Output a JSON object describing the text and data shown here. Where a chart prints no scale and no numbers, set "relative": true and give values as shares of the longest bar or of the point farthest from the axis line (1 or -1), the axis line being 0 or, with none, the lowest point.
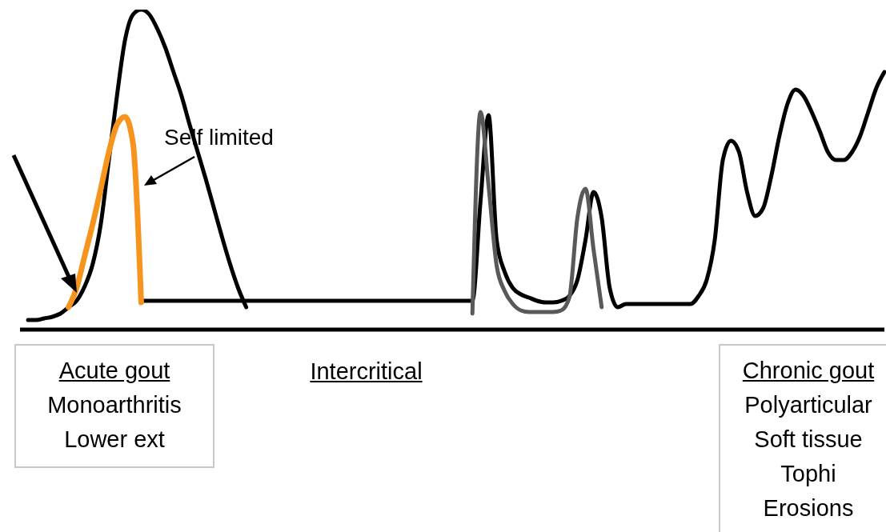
{
  "chart_data": {
    "type": "line",
    "relative": true,
    "categories": [
      null,
      null,
      null,
      null,
      null,
      null,
      null,
      null,
      null,
      null,
      null,
      null,
      null,
      null,
      null,
      null,
      null,
      null,
      null,
      null,
      null,
      null,
      null,
      null,
      null,
      null,
      null,
      null,
      null,
      null,
      null,
      null,
      null,
      null,
      null,
      null,
      null,
      null,
      null,
      null,
      null,
      null,
      null,
      null,
      null,
      null,
      null,
      null,
      null,
      null,
      null,
      null,
      null,
      null,
      null,
      null,
      null,
      null,
      null,
      null,
      null,
      null,
      null,
      null,
      null,
      null,
      null,
      null,
      null,
      null,
      null,
      null,
      null,
      null,
      null,
      null,
      null,
      null,
      null,
      null,
      null,
      null,
      null,
      null,
      null,
      null,
      null,
      null,
      null,
      null,
      null,
      null,
      null,
      null,
      null,
      null,
      null,
      null,
      null,
      null,
      null,
      null,
      null,
      null,
      null,
      null,
      null,
      null
    ],
    "series": [
      {
        "color": "#000000",
        "values": [
          null,
          0.03,
          0.03,
          0.035,
          0.04,
          0.05,
          0.07,
          0.09,
          0.135,
          0.205,
          0.33,
          0.53,
          0.73,
          0.905,
          0.985,
          1,
          0.985,
          0.94,
          0.88,
          0.805,
          0.73,
          0.64,
          0.555,
          0.47,
          0.38,
          0.29,
          0.205,
          0.13,
          0.07,
          null,
          null,
          null,
          null,
          null,
          null,
          null,
          null,
          null,
          null,
          null,
          null,
          null,
          null,
          null,
          null,
          null,
          null,
          null,
          null,
          null,
          null,
          null,
          null,
          null,
          null,
          null,
          null,
          null,
          null,
          null,
          null,
          null,
          null,
          null,
          null,
          null,
          null,
          null,
          null,
          null,
          null,
          null,
          null,
          null,
          null,
          null,
          null,
          null,
          null,
          null,
          null,
          null,
          null,
          null,
          null,
          null,
          null,
          null,
          null,
          null,
          null,
          null,
          null,
          null,
          null,
          null,
          null,
          null,
          null,
          null,
          null,
          null,
          null,
          null,
          null,
          null,
          null,
          null
        ]
      },
      {
        "color": "#000000",
        "values": [
          null,
          null,
          null,
          null,
          null,
          null,
          null,
          null,
          null,
          null,
          null,
          null,
          null,
          null,
          null,
          0.09,
          0.09,
          0.09,
          0.09,
          0.09,
          0.09,
          0.09,
          0.09,
          0.09,
          0.09,
          0.09,
          0.09,
          0.09,
          0.09,
          0.09,
          0.09,
          0.09,
          0.09,
          0.09,
          0.09,
          0.09,
          0.09,
          0.09,
          0.09,
          0.09,
          0.09,
          0.09,
          0.09,
          0.09,
          0.09,
          0.09,
          0.09,
          0.09,
          0.09,
          0.09,
          0.09,
          0.09,
          0.09,
          0.09,
          0.09,
          0.09,
          0.09,
          0.4,
          0.67,
          0.28,
          0.18,
          0.13,
          0.11,
          0.1,
          0.09,
          0.085,
          0.085,
          0.09,
          0.105,
          0.155,
          0.28,
          0.43,
          0.35,
          0.13,
          0.07,
          0.08,
          0.08,
          0.08,
          0.08,
          0.08,
          0.08,
          0.08,
          0.08,
          0.08,
          0.105,
          0.155,
          0.28,
          0.53,
          0.59,
          0.555,
          0.43,
          0.355,
          0.38,
          0.48,
          0.605,
          0.705,
          0.75,
          0.73,
          0.68,
          0.62,
          0.555,
          0.53,
          0.53,
          0.555,
          0.605,
          0.68,
          0.755,
          0.805
        ]
      },
      {
        "color": "#595959",
        "values": [
          null,
          null,
          null,
          null,
          null,
          null,
          null,
          null,
          null,
          null,
          null,
          null,
          null,
          null,
          null,
          null,
          null,
          null,
          null,
          null,
          null,
          null,
          null,
          null,
          null,
          null,
          null,
          null,
          null,
          null,
          null,
          null,
          null,
          null,
          null,
          null,
          null,
          null,
          null,
          null,
          null,
          null,
          null,
          null,
          null,
          null,
          null,
          null,
          null,
          null,
          null,
          null,
          null,
          null,
          null,
          null,
          0.05,
          0.68,
          0.45,
          0.2,
          0.12,
          0.08,
          0.06,
          0.055,
          0.055,
          0.055,
          0.055,
          0.06,
          0.1,
          0.35,
          0.44,
          0.25,
          0.07,
          null,
          null,
          null,
          null,
          null,
          null,
          null,
          null,
          null,
          null,
          null,
          null,
          null,
          null,
          null,
          null,
          null,
          null,
          null,
          null,
          null,
          null,
          null,
          null,
          null,
          null,
          null,
          null,
          null,
          null,
          null,
          null,
          null,
          null,
          null
        ]
      },
      {
        "color": "#f7941d",
        "values": [
          null,
          null,
          null,
          null,
          null,
          null,
          0.07,
          0.13,
          0.23,
          0.33,
          0.44,
          0.555,
          0.64,
          0.665,
          0.58,
          0.085,
          null,
          null,
          null,
          null,
          null,
          null,
          null,
          null,
          null,
          null,
          null,
          null,
          null,
          null,
          null,
          null,
          null,
          null,
          null,
          null,
          null,
          null,
          null,
          null,
          null,
          null,
          null,
          null,
          null,
          null,
          null,
          null,
          null,
          null,
          null,
          null,
          null,
          null,
          null,
          null,
          null,
          null,
          null,
          null,
          null,
          null,
          null,
          null,
          null,
          null,
          null,
          null,
          null,
          null,
          null,
          null,
          null,
          null,
          null,
          null,
          null,
          null,
          null,
          null,
          null,
          null,
          null,
          null,
          null,
          null,
          null,
          null,
          null,
          null,
          null,
          null,
          null,
          null,
          null,
          null,
          null,
          null,
          null,
          null,
          null,
          null,
          null,
          null,
          null,
          null,
          null,
          null
        ]
      }
    ],
    "annotations": [
      "Self limited",
      "Acute gout\nMonoarthritis\nLower ext",
      "Intercritical",
      "Chronic gout\nPolyarticular\nSoft tissue\nTophi\nErosions"
    ]
  }
}
